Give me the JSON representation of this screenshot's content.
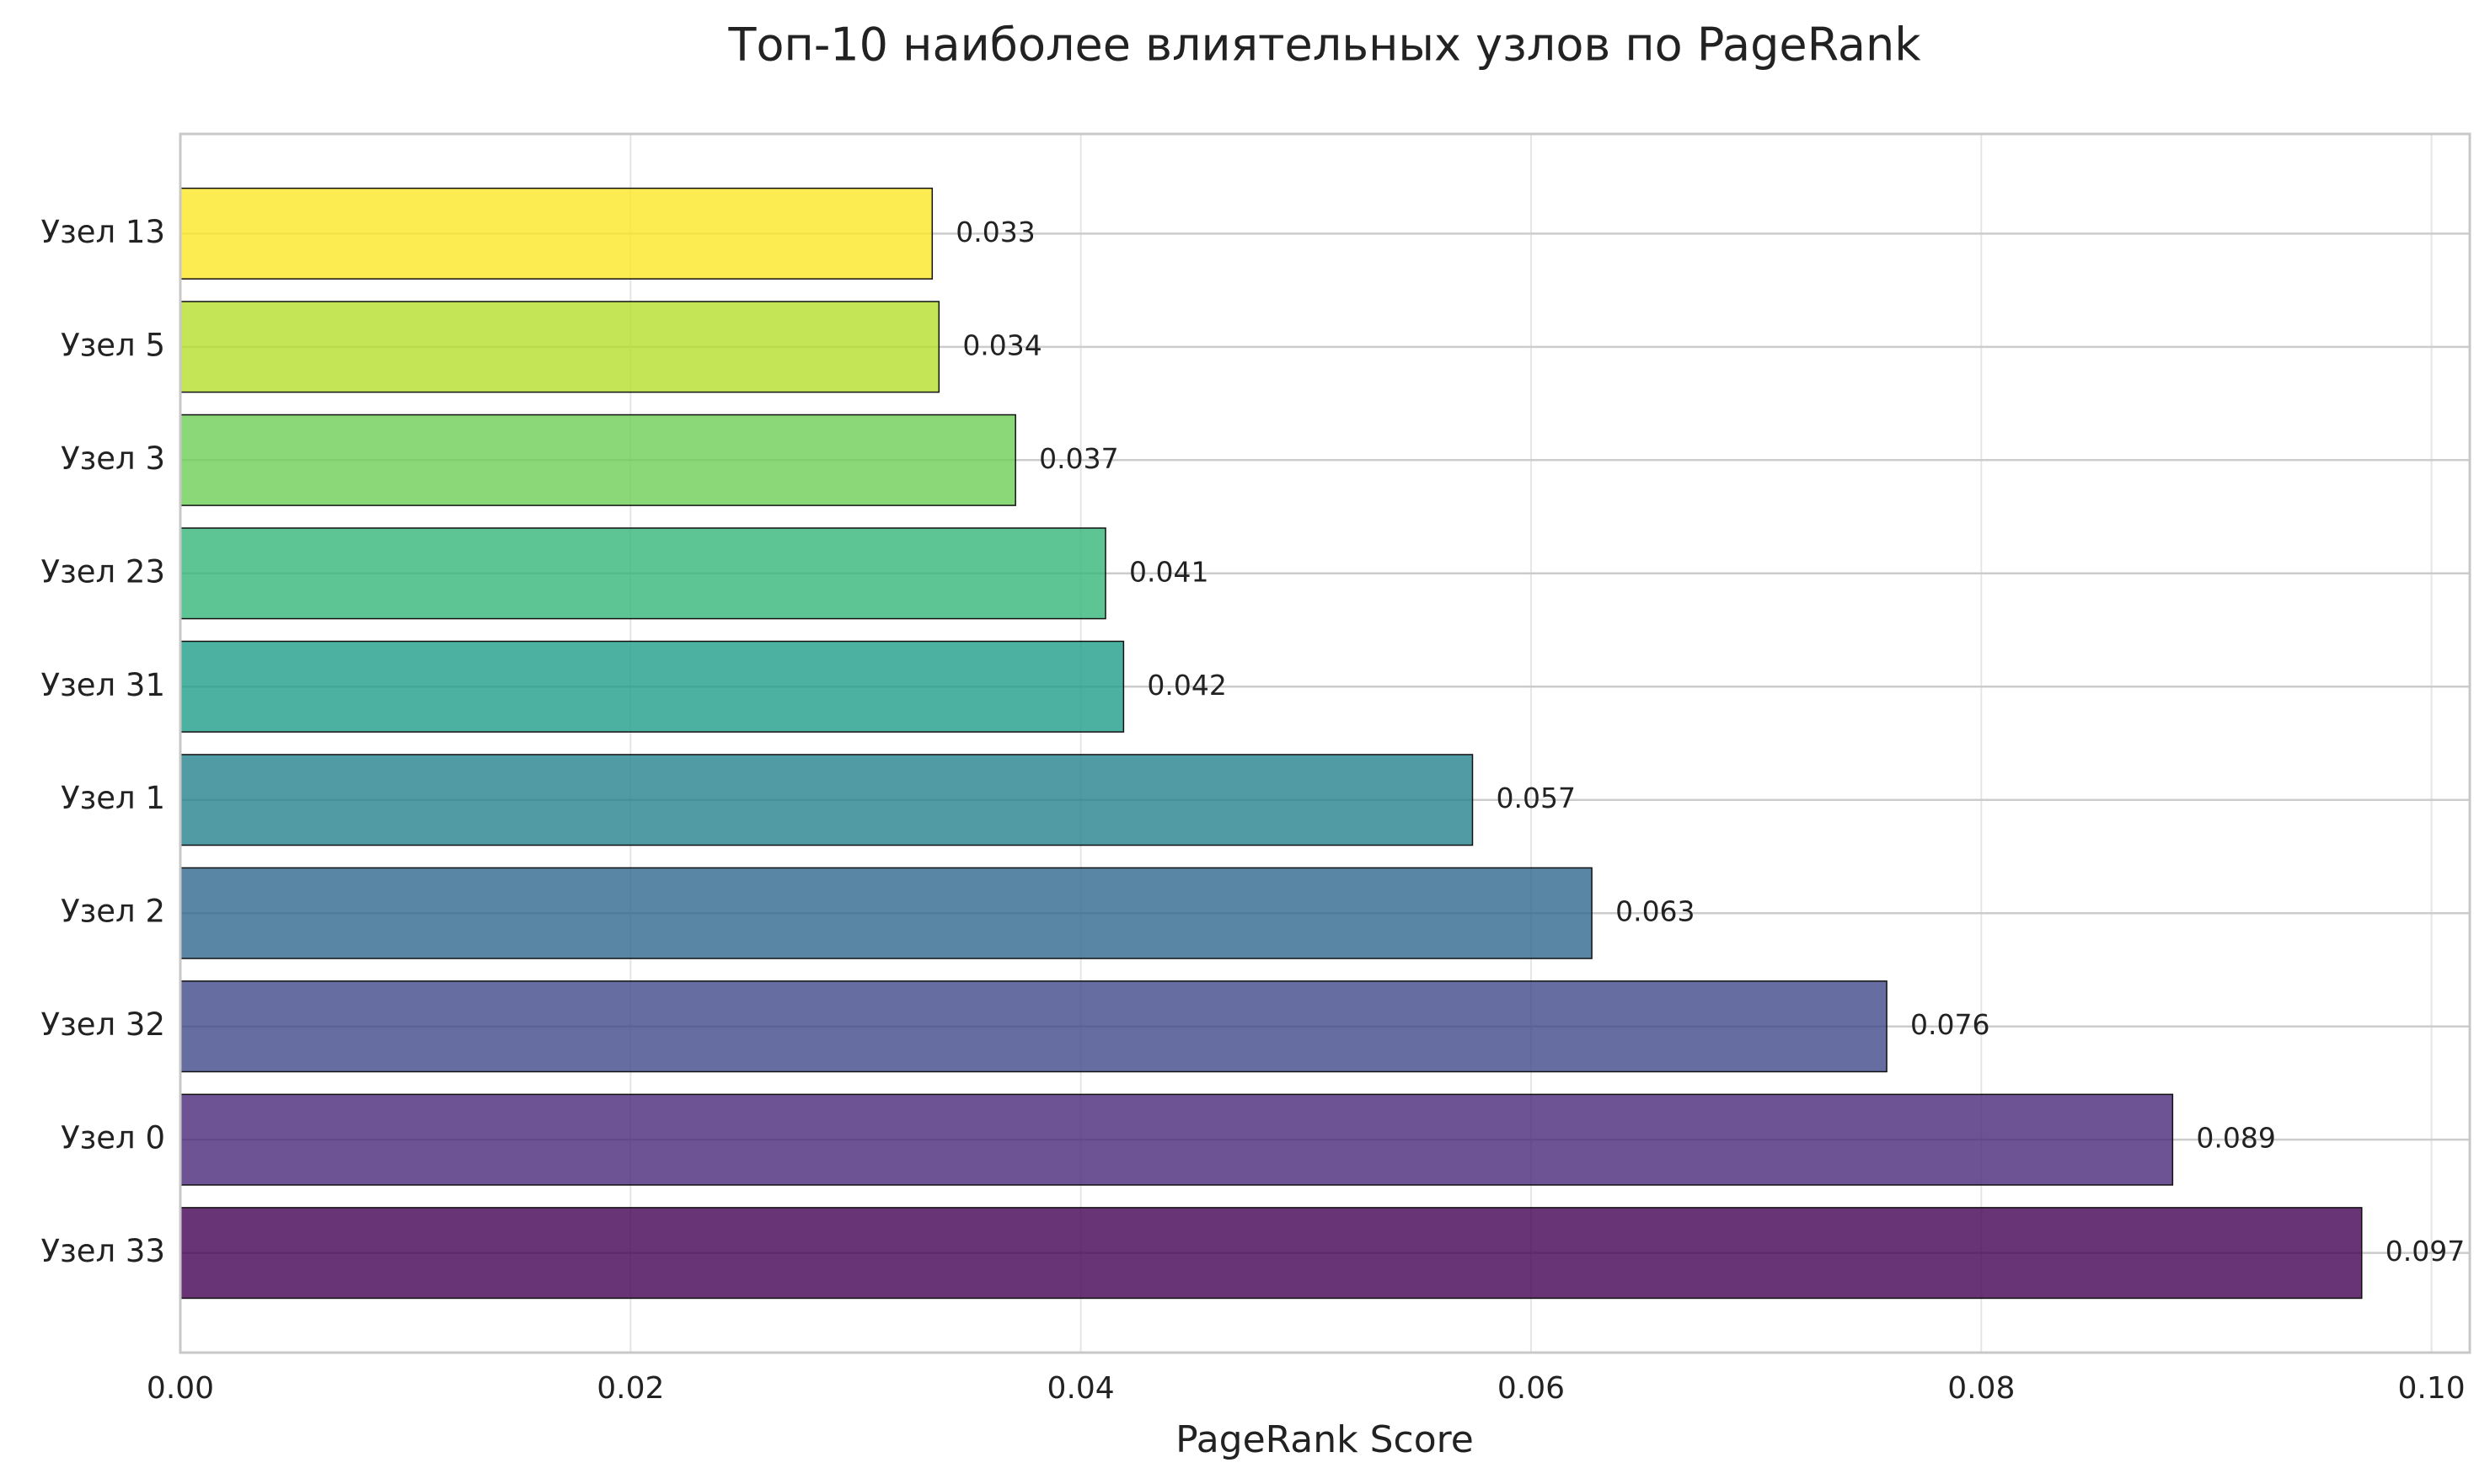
{
  "chart_data": {
    "type": "barh",
    "title": "Топ-10 наиболее влиятельных узлов по PageRank",
    "xlabel": "PageRank Score",
    "categories": [
      "Узел 13",
      "Узел 5",
      "Узел 3",
      "Узел 23",
      "Узел 31",
      "Узел 1",
      "Узел 2",
      "Узел 32",
      "Узел 0",
      "Узел 33"
    ],
    "values": [
      0.0334,
      0.0337,
      0.0371,
      0.0411,
      0.0419,
      0.0574,
      0.0627,
      0.0758,
      0.0885,
      0.0969
    ],
    "value_labels": [
      "0.033",
      "0.034",
      "0.037",
      "0.041",
      "0.042",
      "0.057",
      "0.063",
      "0.076",
      "0.089",
      "0.097"
    ],
    "colors": [
      "#fde725",
      "#b5de2b",
      "#6ece58",
      "#35b779",
      "#1f9e89",
      "#26828e",
      "#31688e",
      "#3e4989",
      "#482878",
      "#440154"
    ],
    "opacity": 0.8,
    "xlim": [
      0,
      0.1017
    ],
    "xticks": [
      {
        "value": 0,
        "label": "0.00"
      },
      {
        "value": 0.02,
        "label": "0.02"
      },
      {
        "value": 0.04,
        "label": "0.04"
      },
      {
        "value": 0.06,
        "label": "0.06"
      },
      {
        "value": 0.08,
        "label": "0.08"
      },
      {
        "value": 0.1,
        "label": "0.10"
      }
    ],
    "grid": true
  }
}
